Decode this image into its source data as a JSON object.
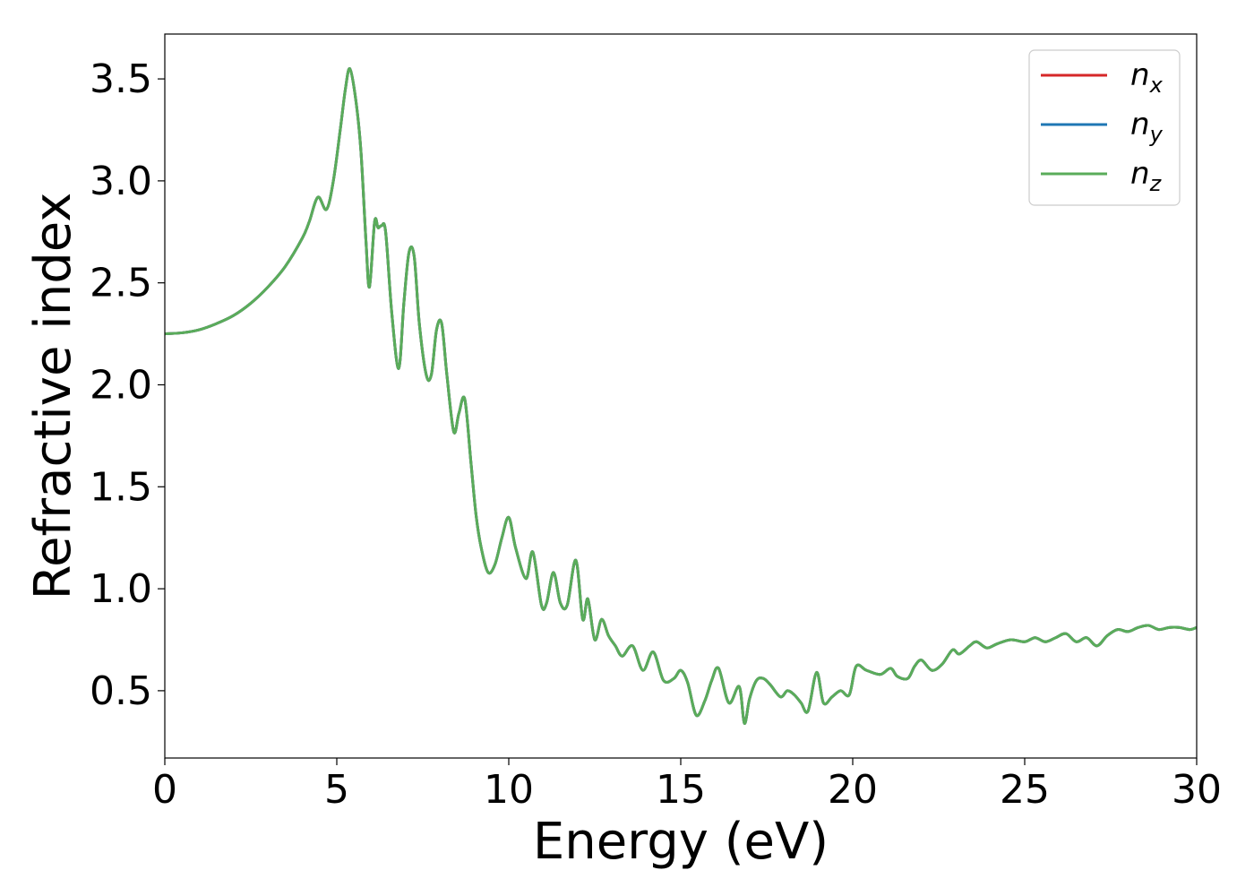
{
  "chart_data": {
    "type": "line",
    "title": "",
    "xlabel": "Energy (eV)",
    "ylabel": "Refractive index",
    "xlim": [
      0,
      30
    ],
    "ylim": [
      0.17,
      3.72
    ],
    "xticks": [
      0,
      5,
      10,
      15,
      20,
      25,
      30
    ],
    "yticks": [
      0.5,
      1.0,
      1.5,
      2.0,
      2.5,
      3.0,
      3.5
    ],
    "xtick_labels": [
      "0",
      "5",
      "10",
      "15",
      "20",
      "25",
      "30"
    ],
    "ytick_labels": [
      "0.5",
      "1.0",
      "1.5",
      "2.0",
      "2.5",
      "3.0",
      "3.5"
    ],
    "grid": false,
    "legend_position": "top-right",
    "series": [
      {
        "name": "n",
        "subscript": "x",
        "color": "#d62728",
        "x": [
          0,
          0.5,
          1,
          1.5,
          2,
          2.5,
          3,
          3.5,
          4,
          4.2,
          4.45,
          4.7,
          4.9,
          5.1,
          5.25,
          5.38,
          5.55,
          5.7,
          5.85,
          5.95,
          6.1,
          6.2,
          6.3,
          6.42,
          6.6,
          6.8,
          6.95,
          7.1,
          7.25,
          7.4,
          7.6,
          7.75,
          7.9,
          8.05,
          8.2,
          8.4,
          8.55,
          8.72,
          8.9,
          9.05,
          9.2,
          9.4,
          9.6,
          9.8,
          10.0,
          10.2,
          10.5,
          10.7,
          10.95,
          11.1,
          11.3,
          11.5,
          11.7,
          11.95,
          12.15,
          12.3,
          12.5,
          12.7,
          12.9,
          13.1,
          13.3,
          13.6,
          13.9,
          14.2,
          14.5,
          14.8,
          15.0,
          15.2,
          15.45,
          15.7,
          15.9,
          16.1,
          16.4,
          16.7,
          16.85,
          17.0,
          17.2,
          17.4,
          17.6,
          17.9,
          18.1,
          18.3,
          18.5,
          18.7,
          18.95,
          19.15,
          19.4,
          19.65,
          19.9,
          20.1,
          20.4,
          20.8,
          21.1,
          21.3,
          21.6,
          21.8,
          22.0,
          22.3,
          22.6,
          22.9,
          23.1,
          23.4,
          23.6,
          23.9,
          24.2,
          24.6,
          25.0,
          25.3,
          25.6,
          25.9,
          26.2,
          26.5,
          26.8,
          27.1,
          27.4,
          27.7,
          28.0,
          28.3,
          28.6,
          28.9,
          29.2,
          29.5,
          29.8,
          30.0
        ],
        "y": [
          2.25,
          2.255,
          2.27,
          2.3,
          2.34,
          2.4,
          2.48,
          2.58,
          2.72,
          2.8,
          2.92,
          2.86,
          3.0,
          3.25,
          3.45,
          3.55,
          3.4,
          3.15,
          2.7,
          2.48,
          2.8,
          2.77,
          2.78,
          2.75,
          2.35,
          2.08,
          2.4,
          2.65,
          2.63,
          2.3,
          2.05,
          2.05,
          2.27,
          2.3,
          2.05,
          1.77,
          1.86,
          1.93,
          1.62,
          1.36,
          1.2,
          1.08,
          1.12,
          1.25,
          1.35,
          1.2,
          1.05,
          1.18,
          0.92,
          0.93,
          1.08,
          0.93,
          0.92,
          1.14,
          0.85,
          0.95,
          0.75,
          0.85,
          0.77,
          0.72,
          0.67,
          0.72,
          0.6,
          0.69,
          0.55,
          0.56,
          0.6,
          0.54,
          0.38,
          0.45,
          0.55,
          0.61,
          0.44,
          0.52,
          0.34,
          0.46,
          0.55,
          0.56,
          0.53,
          0.47,
          0.5,
          0.48,
          0.44,
          0.4,
          0.59,
          0.44,
          0.47,
          0.5,
          0.48,
          0.62,
          0.6,
          0.58,
          0.61,
          0.57,
          0.56,
          0.62,
          0.65,
          0.6,
          0.63,
          0.7,
          0.68,
          0.72,
          0.74,
          0.71,
          0.73,
          0.75,
          0.74,
          0.76,
          0.74,
          0.76,
          0.78,
          0.74,
          0.76,
          0.72,
          0.77,
          0.8,
          0.79,
          0.81,
          0.82,
          0.8,
          0.81,
          0.81,
          0.8,
          0.81
        ],
        "__seed": 0
      },
      {
        "name": "n",
        "subscript": "y",
        "color": "#1f77b4",
        "same_as": 0
      },
      {
        "name": "n",
        "subscript": "z",
        "color": "#5aac5a",
        "same_as": 0
      }
    ]
  }
}
